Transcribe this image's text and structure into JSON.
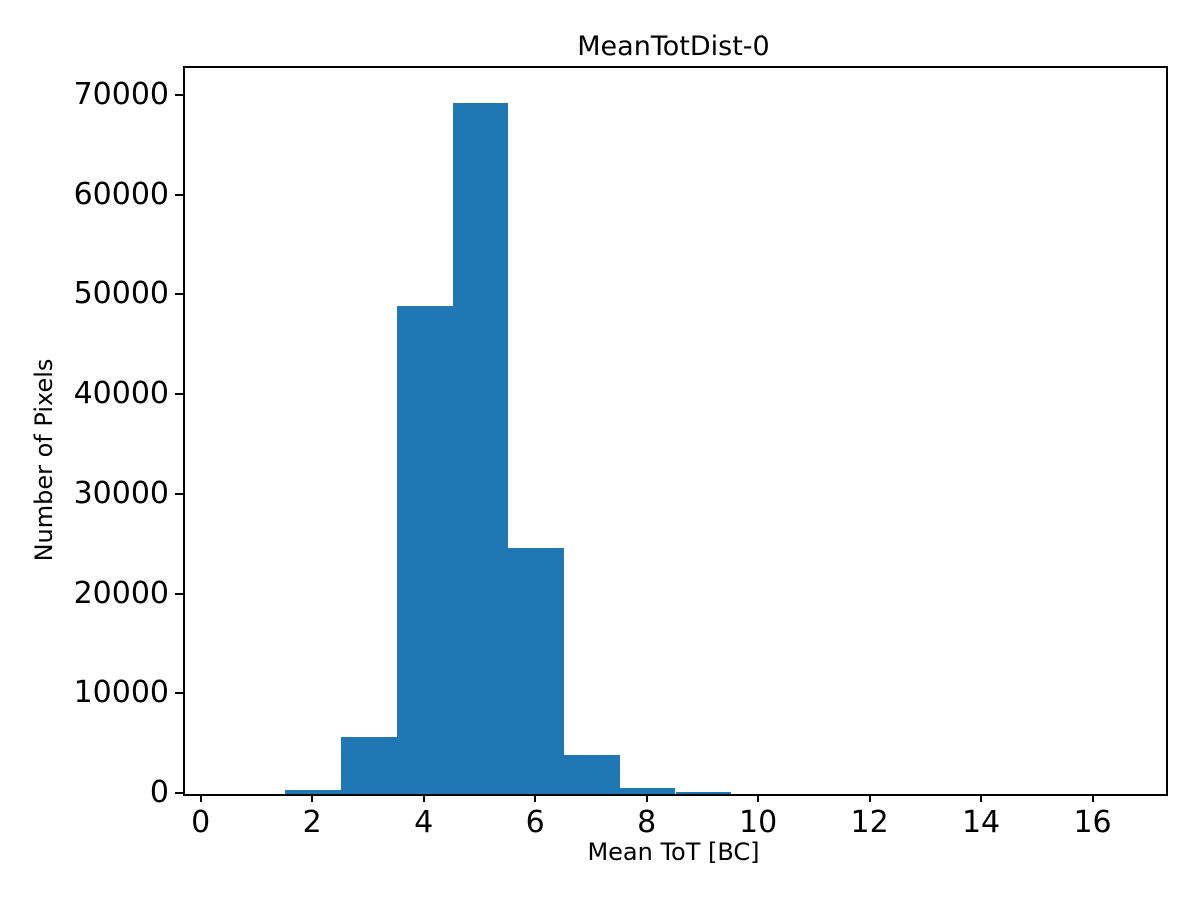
{
  "chart_data": {
    "type": "bar",
    "subtype": "histogram",
    "title": "MeanTotDist-0",
    "xlabel": "Mean ToT [BC]",
    "ylabel": "Number of Pixels",
    "bar_color": "#1f77b4",
    "axis_color": "#000000",
    "background_color": "#ffffff",
    "grid": false,
    "legend": false,
    "xlim": [
      -0.3,
      17.3
    ],
    "ylim": [
      0,
      72800
    ],
    "x_ticks": [
      0,
      2,
      4,
      6,
      8,
      10,
      12,
      14,
      16
    ],
    "y_ticks": [
      0,
      10000,
      20000,
      30000,
      40000,
      50000,
      60000,
      70000
    ],
    "bin_width": 1,
    "bins": [
      {
        "start": 1.5,
        "count": 400
      },
      {
        "start": 2.5,
        "count": 5700
      },
      {
        "start": 3.5,
        "count": 48900
      },
      {
        "start": 4.5,
        "count": 69300
      },
      {
        "start": 5.5,
        "count": 24700
      },
      {
        "start": 6.5,
        "count": 3900
      },
      {
        "start": 7.5,
        "count": 600
      },
      {
        "start": 8.5,
        "count": 230
      }
    ]
  }
}
